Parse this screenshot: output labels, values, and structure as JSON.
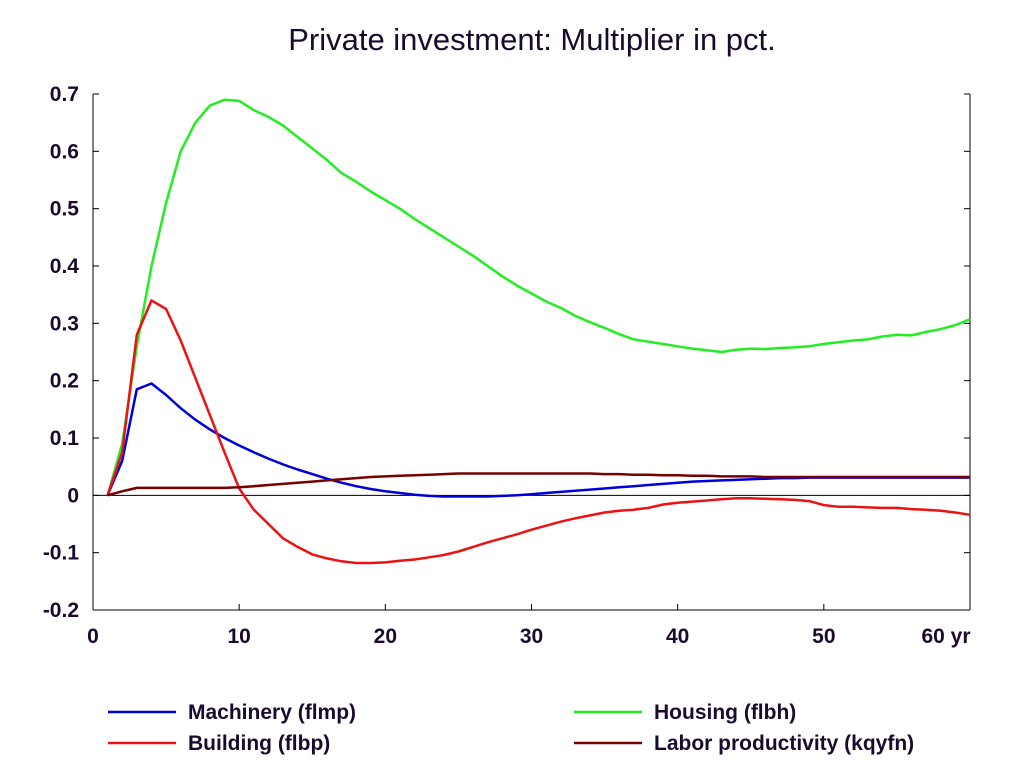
{
  "chart_data": {
    "type": "line",
    "title": "Private investment: Multiplier in pct.",
    "xlabel": "",
    "ylabel": "",
    "x_unit": "yr",
    "xlim": [
      0,
      60
    ],
    "ylim": [
      -0.2,
      0.7
    ],
    "xticks": [
      0,
      10,
      20,
      30,
      40,
      50,
      60
    ],
    "xtick_labels": [
      "0",
      "10",
      "20",
      "30",
      "40",
      "50",
      "60 yr"
    ],
    "yticks": [
      -0.2,
      -0.1,
      0,
      0.1,
      0.2,
      0.3,
      0.4,
      0.5,
      0.6,
      0.7
    ],
    "ytick_labels": [
      "-0.2",
      "-0.1",
      "0",
      "0.1",
      "0.2",
      "0.3",
      "0.4",
      "0.5",
      "0.6",
      "0.7"
    ],
    "grid": false,
    "zero_line": true,
    "legend_position": "bottom",
    "x": [
      1,
      2,
      3,
      4,
      5,
      6,
      7,
      8,
      9,
      10,
      11,
      12,
      13,
      14,
      15,
      16,
      17,
      18,
      19,
      20,
      21,
      22,
      23,
      24,
      25,
      26,
      27,
      28,
      29,
      30,
      31,
      32,
      33,
      34,
      35,
      36,
      37,
      38,
      39,
      40,
      41,
      42,
      43,
      44,
      45,
      46,
      47,
      48,
      49,
      50,
      51,
      52,
      53,
      54,
      55,
      56,
      57,
      58,
      59,
      60
    ],
    "series": [
      {
        "name": "Machinery (flmp)",
        "color": "#0000dd",
        "values": [
          0,
          0.06,
          0.185,
          0.195,
          0.175,
          0.152,
          0.132,
          0.115,
          0.1,
          0.087,
          0.075,
          0.064,
          0.054,
          0.045,
          0.037,
          0.029,
          0.022,
          0.016,
          0.011,
          0.007,
          0.004,
          0.001,
          -0.001,
          -0.002,
          -0.002,
          -0.002,
          -0.002,
          -0.001,
          0,
          0.002,
          0.004,
          0.006,
          0.008,
          0.01,
          0.012,
          0.014,
          0.016,
          0.018,
          0.02,
          0.022,
          0.024,
          0.025,
          0.026,
          0.027,
          0.028,
          0.029,
          0.03,
          0.03,
          0.031,
          0.031,
          0.031,
          0.031,
          0.031,
          0.031,
          0.031,
          0.031,
          0.031,
          0.031,
          0.031,
          0.031
        ]
      },
      {
        "name": "Housing (flbh)",
        "color": "#22ee22",
        "values": [
          0,
          0.09,
          0.26,
          0.4,
          0.51,
          0.6,
          0.65,
          0.68,
          0.69,
          0.688,
          0.672,
          0.66,
          0.645,
          0.625,
          0.605,
          0.585,
          0.562,
          0.547,
          0.53,
          0.515,
          0.5,
          0.482,
          0.466,
          0.45,
          0.434,
          0.418,
          0.4,
          0.382,
          0.366,
          0.352,
          0.338,
          0.327,
          0.313,
          0.302,
          0.292,
          0.281,
          0.272,
          0.268,
          0.264,
          0.26,
          0.256,
          0.253,
          0.25,
          0.254,
          0.256,
          0.255,
          0.257,
          0.258,
          0.26,
          0.264,
          0.267,
          0.27,
          0.272,
          0.277,
          0.28,
          0.279,
          0.285,
          0.29,
          0.297,
          0.307
        ]
      },
      {
        "name": "Building (flbp)",
        "color": "#ee1111",
        "values": [
          0,
          0.075,
          0.28,
          0.34,
          0.325,
          0.27,
          0.205,
          0.14,
          0.075,
          0.012,
          -0.025,
          -0.05,
          -0.075,
          -0.09,
          -0.103,
          -0.11,
          -0.115,
          -0.118,
          -0.118,
          -0.117,
          -0.114,
          -0.112,
          -0.108,
          -0.104,
          -0.098,
          -0.09,
          -0.082,
          -0.075,
          -0.068,
          -0.06,
          -0.053,
          -0.046,
          -0.04,
          -0.035,
          -0.03,
          -0.027,
          -0.025,
          -0.022,
          -0.016,
          -0.013,
          -0.011,
          -0.009,
          -0.007,
          -0.005,
          -0.005,
          -0.006,
          -0.007,
          -0.008,
          -0.01,
          -0.017,
          -0.02,
          -0.02,
          -0.021,
          -0.022,
          -0.022,
          -0.024,
          -0.025,
          -0.027,
          -0.03,
          -0.034
        ]
      },
      {
        "name": "Labor productivity (kqyfn)",
        "color": "#770000",
        "values": [
          0,
          0.007,
          0.013,
          0.013,
          0.013,
          0.013,
          0.013,
          0.013,
          0.013,
          0.014,
          0.016,
          0.018,
          0.02,
          0.022,
          0.024,
          0.026,
          0.028,
          0.03,
          0.032,
          0.033,
          0.034,
          0.035,
          0.036,
          0.037,
          0.038,
          0.038,
          0.038,
          0.038,
          0.038,
          0.038,
          0.038,
          0.038,
          0.038,
          0.038,
          0.037,
          0.037,
          0.036,
          0.036,
          0.035,
          0.035,
          0.034,
          0.034,
          0.033,
          0.033,
          0.033,
          0.032,
          0.032,
          0.032,
          0.032,
          0.032,
          0.032,
          0.032,
          0.032,
          0.032,
          0.032,
          0.032,
          0.032,
          0.032,
          0.032,
          0.032
        ]
      }
    ]
  }
}
